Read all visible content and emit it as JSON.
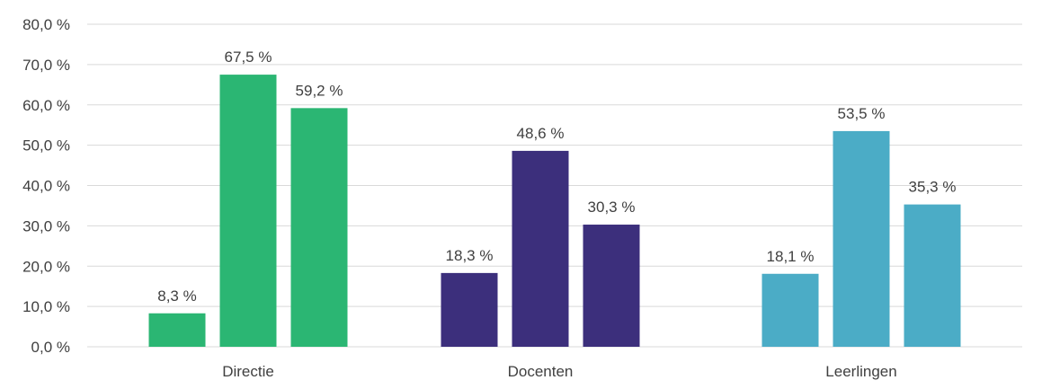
{
  "chart_data": {
    "type": "bar",
    "categories": [
      "Directie",
      "Docenten",
      "Leerlingen"
    ],
    "values": [
      [
        8.3,
        67.5,
        59.2
      ],
      [
        18.3,
        48.6,
        30.3
      ],
      [
        18.1,
        53.5,
        35.3
      ]
    ],
    "value_labels": [
      [
        "8,3 %",
        "67,5 %",
        "59,2 %"
      ],
      [
        "18,3 %",
        "48,6 %",
        "30,3 %"
      ],
      [
        "18,1 %",
        "53,5 %",
        "35,3 %"
      ]
    ],
    "category_colors": [
      "#2bb673",
      "#3c2f7c",
      "#4bacc6"
    ],
    "ylim": [
      0,
      80
    ],
    "yticks": [
      0,
      10,
      20,
      30,
      40,
      50,
      60,
      70,
      80
    ],
    "ytick_labels": [
      "0,0 %",
      "10,0 %",
      "20,0 %",
      "30,0 %",
      "40,0 %",
      "50,0 %",
      "60,0 %",
      "70,0 %",
      "80,0 %"
    ],
    "grid": true,
    "gridline_color": "#d9d9d9",
    "title": "",
    "xlabel": "",
    "ylabel": ""
  }
}
